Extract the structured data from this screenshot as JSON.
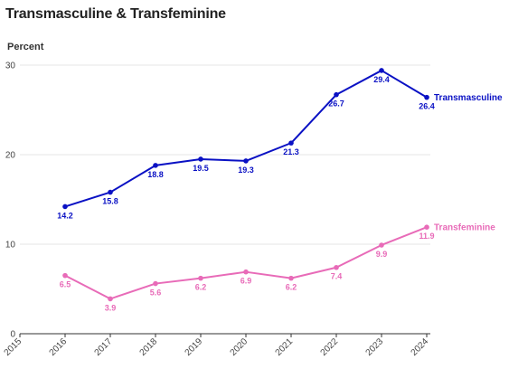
{
  "chart_data": {
    "type": "line",
    "title": "Transmasculine & Transfeminine",
    "xlabel": "",
    "ylabel": "Percent",
    "x": [
      "2015",
      "2016",
      "2017",
      "2018",
      "2019",
      "2020",
      "2021",
      "2022",
      "2023",
      "2024"
    ],
    "ylim": [
      0,
      30
    ],
    "yticks": [
      "0",
      "10",
      "20",
      "30"
    ],
    "grid": true,
    "series": [
      {
        "name": "Transmasculine",
        "color": "#0a11c4",
        "x": [
          "2016",
          "2017",
          "2018",
          "2019",
          "2020",
          "2021",
          "2022",
          "2023",
          "2024"
        ],
        "values": [
          14.2,
          15.8,
          18.8,
          19.5,
          19.3,
          21.3,
          26.7,
          29.4,
          26.4
        ],
        "labels": [
          "14.2",
          "15.8",
          "18.8",
          "19.5",
          "19.3",
          "21.3",
          "26.7",
          "29.4",
          "26.4"
        ]
      },
      {
        "name": "Transfeminine",
        "color": "#e86bb8",
        "x": [
          "2016",
          "2017",
          "2018",
          "2019",
          "2020",
          "2021",
          "2022",
          "2023",
          "2024"
        ],
        "values": [
          6.5,
          3.9,
          5.6,
          6.2,
          6.9,
          6.2,
          7.4,
          9.9,
          11.9
        ],
        "labels": [
          "6.5",
          "3.9",
          "5.6",
          "6.2",
          "6.9",
          "6.2",
          "7.4",
          "9.9",
          "11.9"
        ]
      }
    ]
  }
}
